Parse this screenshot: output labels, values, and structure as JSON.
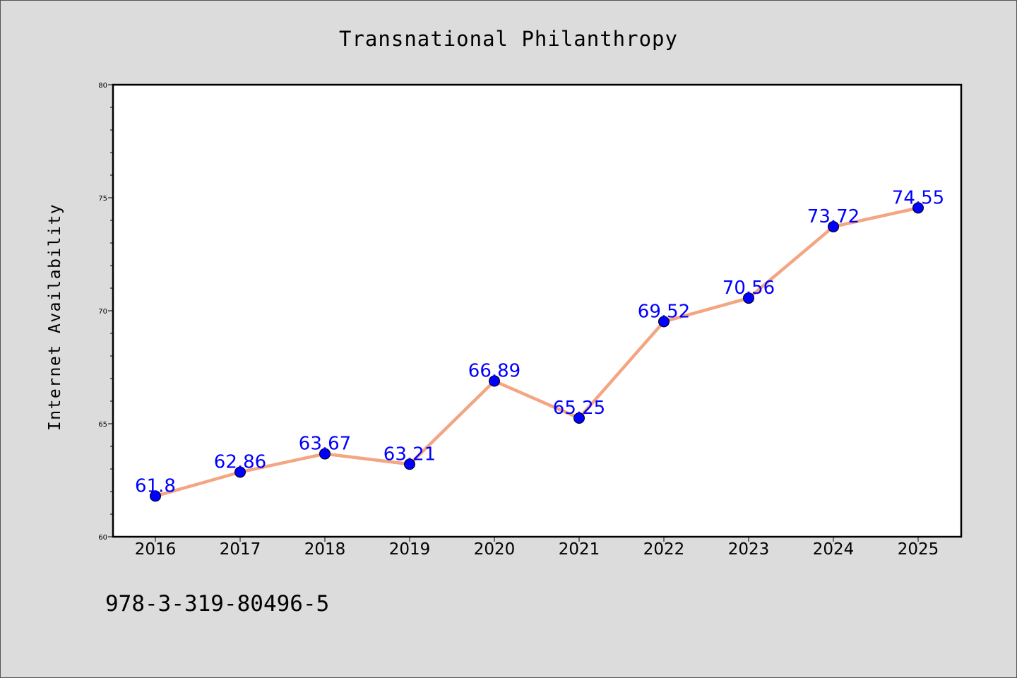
{
  "chart_data": {
    "type": "line",
    "title": "Transnational Philanthropy",
    "xlabel": "",
    "ylabel": "Internet Availability",
    "x": [
      "2016",
      "2017",
      "2018",
      "2019",
      "2020",
      "2021",
      "2022",
      "2023",
      "2024",
      "2025"
    ],
    "series": [
      {
        "values": [
          61.8,
          62.86,
          63.67,
          63.21,
          66.89,
          65.25,
          69.52,
          70.56,
          73.72,
          74.55
        ],
        "labels": [
          "61.8",
          "62.86",
          "63.67",
          "63.21",
          "66.89",
          "65.25",
          "69.52",
          "70.56",
          "73.72",
          "74.55"
        ]
      }
    ],
    "ylim": [
      60,
      80
    ],
    "yticks": [
      "60",
      "65",
      "70",
      "75",
      "80"
    ],
    "grid": false,
    "colors": {
      "line": "#f4a582",
      "marker": "#0000ff",
      "label": "#0000ff",
      "background": "#dcdcdc",
      "plot_background": "#ffffff"
    }
  },
  "footer": {
    "isbn": "978-3-319-80496-5"
  }
}
